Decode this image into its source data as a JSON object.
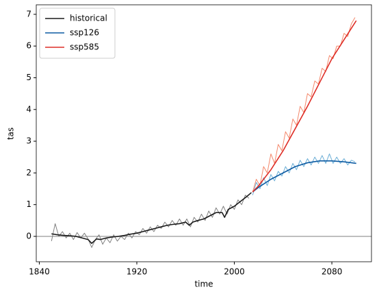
{
  "chart_data": {
    "type": "line",
    "xlabel": "time",
    "ylabel": "tas",
    "xlim": [
      1837.5,
      2112.5
    ],
    "xticks": [
      1840,
      1920,
      2000,
      2080
    ],
    "ylim": [
      -0.8,
      7.3
    ],
    "yticks": [
      0,
      1,
      2,
      3,
      4,
      5,
      6,
      7
    ],
    "hlines": [
      {
        "value": 0,
        "color": "#555555"
      }
    ],
    "legend": "upper-left",
    "series": [
      {
        "color": "#808080",
        "width": 1,
        "x": [
          1850,
          1853,
          1856,
          1859,
          1862,
          1865,
          1868,
          1871,
          1874,
          1877,
          1880,
          1883,
          1886,
          1889,
          1892,
          1895,
          1898,
          1901,
          1904,
          1907,
          1910,
          1913,
          1916,
          1919,
          1922,
          1925,
          1928,
          1931,
          1934,
          1937,
          1940,
          1943,
          1946,
          1949,
          1952,
          1955,
          1958,
          1961,
          1964,
          1967,
          1970,
          1973,
          1976,
          1979,
          1982,
          1985,
          1988,
          1991,
          1994,
          1997,
          2000,
          2003,
          2006,
          2009,
          2012
        ],
        "values": [
          -0.15,
          0.4,
          0.0,
          0.15,
          -0.05,
          0.1,
          -0.1,
          0.12,
          -0.05,
          0.1,
          -0.08,
          -0.35,
          -0.1,
          0.05,
          -0.25,
          -0.05,
          -0.2,
          0.05,
          -0.15,
          0.0,
          -0.1,
          0.1,
          -0.05,
          0.15,
          0.05,
          0.25,
          0.1,
          0.3,
          0.15,
          0.35,
          0.25,
          0.45,
          0.3,
          0.5,
          0.35,
          0.55,
          0.35,
          0.55,
          0.3,
          0.6,
          0.45,
          0.7,
          0.5,
          0.8,
          0.6,
          0.9,
          0.7,
          0.95,
          0.7,
          1.0,
          0.85,
          1.15,
          1.0,
          1.3,
          1.2
        ]
      },
      {
        "color": "#6baed6",
        "width": 1,
        "x": [
          2015,
          2018,
          2021,
          2024,
          2027,
          2030,
          2033,
          2036,
          2039,
          2042,
          2045,
          2048,
          2051,
          2054,
          2057,
          2060,
          2063,
          2066,
          2069,
          2072,
          2075,
          2078,
          2081,
          2084,
          2087,
          2090,
          2093,
          2096,
          2099
        ],
        "values": [
          1.3,
          1.7,
          1.5,
          1.85,
          1.6,
          1.95,
          1.75,
          2.05,
          1.9,
          2.2,
          2.0,
          2.3,
          2.1,
          2.4,
          2.2,
          2.45,
          2.25,
          2.5,
          2.3,
          2.55,
          2.3,
          2.6,
          2.3,
          2.5,
          2.3,
          2.45,
          2.25,
          2.4,
          2.35
        ]
      },
      {
        "color": "#f4876a",
        "width": 1,
        "x": [
          2015,
          2018,
          2021,
          2024,
          2027,
          2030,
          2033,
          2036,
          2039,
          2042,
          2045,
          2048,
          2051,
          2054,
          2057,
          2060,
          2063,
          2066,
          2069,
          2072,
          2075,
          2078,
          2081,
          2084,
          2087,
          2090,
          2093,
          2096,
          2099
        ],
        "values": [
          1.4,
          1.8,
          1.6,
          2.2,
          2.0,
          2.6,
          2.3,
          2.9,
          2.7,
          3.3,
          3.1,
          3.7,
          3.5,
          4.1,
          3.9,
          4.5,
          4.4,
          4.9,
          4.8,
          5.3,
          5.2,
          5.7,
          5.6,
          6.0,
          6.0,
          6.4,
          6.3,
          6.7,
          6.9
        ]
      },
      {
        "name": "historical",
        "color": "#1a1a1a",
        "width": 1.6,
        "x": [
          1850,
          1855,
          1860,
          1865,
          1870,
          1875,
          1880,
          1883,
          1887,
          1890,
          1895,
          1900,
          1905,
          1910,
          1915,
          1920,
          1925,
          1930,
          1935,
          1940,
          1945,
          1950,
          1955,
          1960,
          1963,
          1966,
          1970,
          1975,
          1980,
          1985,
          1990,
          1992,
          1995,
          2000,
          2005,
          2010,
          2014
        ],
        "values": [
          0.08,
          0.05,
          0.03,
          0.02,
          0.0,
          -0.05,
          -0.1,
          -0.22,
          -0.08,
          -0.1,
          -0.05,
          -0.02,
          0.0,
          0.03,
          0.07,
          0.1,
          0.15,
          0.2,
          0.25,
          0.3,
          0.35,
          0.38,
          0.4,
          0.45,
          0.35,
          0.45,
          0.5,
          0.55,
          0.65,
          0.75,
          0.75,
          0.6,
          0.85,
          0.95,
          1.1,
          1.25,
          1.38
        ]
      },
      {
        "name": "ssp126",
        "color": "#0b5aa2",
        "width": 1.6,
        "x": [
          2015,
          2020,
          2030,
          2040,
          2050,
          2060,
          2070,
          2080,
          2090,
          2100
        ],
        "values": [
          1.4,
          1.55,
          1.8,
          2.0,
          2.2,
          2.32,
          2.38,
          2.38,
          2.35,
          2.3
        ]
      },
      {
        "name": "ssp585",
        "color": "#de2d26",
        "width": 1.6,
        "x": [
          2015,
          2020,
          2030,
          2040,
          2050,
          2060,
          2070,
          2080,
          2090,
          2100
        ],
        "values": [
          1.4,
          1.6,
          2.1,
          2.7,
          3.4,
          4.1,
          4.85,
          5.6,
          6.2,
          6.8
        ]
      }
    ]
  }
}
